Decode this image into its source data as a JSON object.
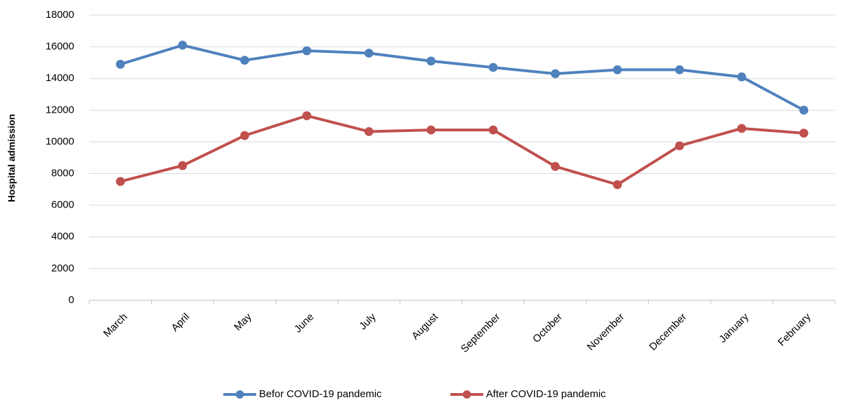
{
  "chart_data": {
    "type": "line",
    "y_label": "Hospital admission",
    "categories": [
      "March",
      "April",
      "May",
      "June",
      "July",
      "August",
      "September",
      "October",
      "November",
      "December",
      "January",
      "February"
    ],
    "series": [
      {
        "name": "Befor COVID-19 pandemic",
        "color": "#4f81bd",
        "values": [
          14900,
          16100,
          15150,
          15750,
          15600,
          15100,
          14700,
          14300,
          14550,
          14550,
          14100,
          12000
        ]
      },
      {
        "name": "After COVID-19 pandemic",
        "color": "#c0504d",
        "values": [
          7500,
          8500,
          10400,
          11650,
          10650,
          10750,
          10750,
          8450,
          7300,
          9750,
          10850,
          10550
        ]
      }
    ],
    "ylim": [
      0,
      18000
    ],
    "yticks": [
      0,
      2000,
      4000,
      6000,
      8000,
      10000,
      12000,
      14000,
      16000,
      18000
    ],
    "grid": true,
    "legend": "bottom"
  }
}
